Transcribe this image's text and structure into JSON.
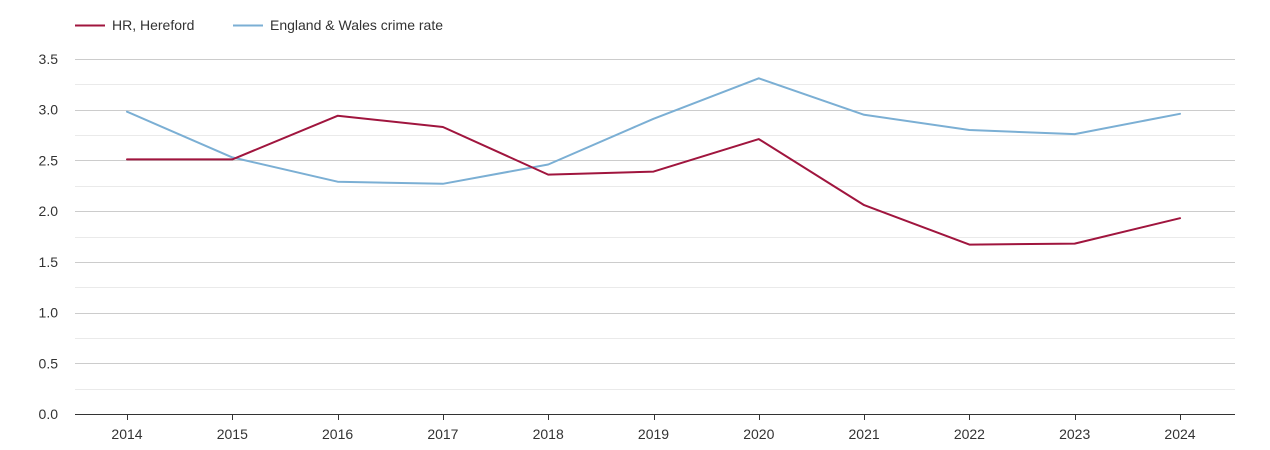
{
  "chart_data": {
    "type": "line",
    "title": "",
    "xlabel": "",
    "ylabel": "",
    "categories": [
      "2014",
      "2015",
      "2016",
      "2017",
      "2018",
      "2019",
      "2020",
      "2021",
      "2022",
      "2023",
      "2024"
    ],
    "series": [
      {
        "name": "HR, Hereford",
        "color": "#a0153e",
        "values": [
          2.51,
          2.51,
          2.94,
          2.83,
          2.36,
          2.39,
          2.71,
          2.06,
          1.67,
          1.68,
          1.93
        ]
      },
      {
        "name": "England & Wales crime rate",
        "color": "#7bafd4",
        "values": [
          2.98,
          2.53,
          2.29,
          2.27,
          2.46,
          2.91,
          3.31,
          2.95,
          2.8,
          2.76,
          2.96
        ]
      }
    ],
    "ylim": [
      0,
      3.5
    ],
    "yticks": [
      "0.0",
      "0.5",
      "1.0",
      "1.5",
      "2.0",
      "2.5",
      "3.0",
      "3.5"
    ],
    "grid": true,
    "legend_position": "top-left"
  }
}
